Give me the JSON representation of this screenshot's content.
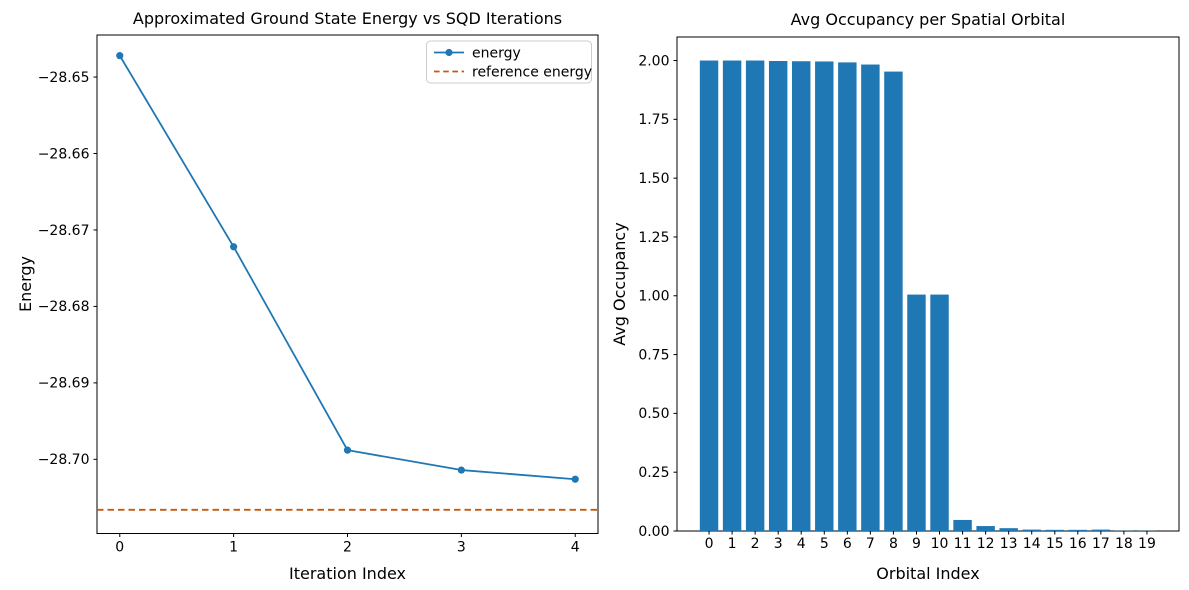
{
  "figure": {
    "background": "#ffffff",
    "spine_color": "#000000",
    "text_color": "#000000"
  },
  "chart_data": [
    {
      "type": "line",
      "title": "Approximated Ground State Energy vs SQD Iterations",
      "xlabel": "Iteration Index",
      "ylabel": "Energy",
      "x": [
        0,
        1,
        2,
        3,
        4
      ],
      "series": [
        {
          "name": "energy",
          "style": "solid-line-with-circle-markers",
          "color": "#1f77b4",
          "values": [
            -28.6472,
            -28.6722,
            -28.6988,
            -28.7014,
            -28.7026
          ]
        },
        {
          "name": "reference energy",
          "style": "dashed-horizontal-line",
          "color": "#c55a11",
          "value": -28.7066
        }
      ],
      "xlim": [
        -0.2,
        4.2
      ],
      "ylim": [
        -28.7097,
        -28.6445
      ],
      "xticks": [
        0,
        1,
        2,
        3,
        4
      ],
      "xtick_labels": [
        "0",
        "1",
        "2",
        "3",
        "4"
      ],
      "yticks": [
        -28.65,
        -28.66,
        -28.67,
        -28.68,
        -28.69,
        -28.7
      ],
      "ytick_labels": [
        "−28.65",
        "−28.66",
        "−28.67",
        "−28.68",
        "−28.69",
        "−28.70"
      ],
      "legend": {
        "location": "upper right",
        "entries": [
          "energy",
          "reference energy"
        ]
      },
      "grid": false
    },
    {
      "type": "bar",
      "title": "Avg Occupancy per Spatial Orbital",
      "xlabel": "Orbital Index",
      "ylabel": "Avg Occupancy",
      "categories": [
        "0",
        "1",
        "2",
        "3",
        "4",
        "5",
        "6",
        "7",
        "8",
        "9",
        "10",
        "11",
        "12",
        "13",
        "14",
        "15",
        "16",
        "17",
        "18",
        "19"
      ],
      "values": [
        2.0,
        2.0,
        2.0,
        1.998,
        1.997,
        1.996,
        1.992,
        1.983,
        1.953,
        1.005,
        1.005,
        0.047,
        0.021,
        0.012,
        0.006,
        0.005,
        0.005,
        0.006,
        0.001,
        0.001
      ],
      "bar_color": "#1f77b4",
      "xlim": [
        -1.39,
        20.39
      ],
      "ylim": [
        0,
        2.1
      ],
      "yticks": [
        0.0,
        0.25,
        0.5,
        0.75,
        1.0,
        1.25,
        1.5,
        1.75,
        2.0
      ],
      "ytick_labels": [
        "0.00",
        "0.25",
        "0.50",
        "0.75",
        "1.00",
        "1.25",
        "1.50",
        "1.75",
        "2.00"
      ],
      "legend": null,
      "grid": false
    }
  ]
}
